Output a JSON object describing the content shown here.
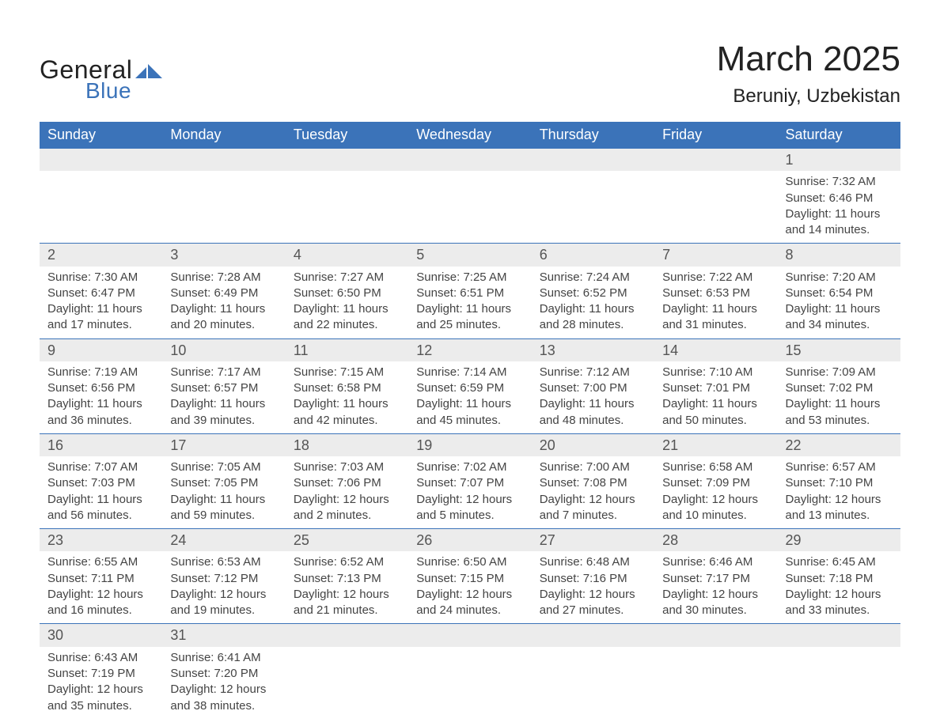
{
  "brand": {
    "word1": "General",
    "word2": "Blue",
    "text_color": "#222222",
    "accent_color": "#3b73b9"
  },
  "header": {
    "title": "March 2025",
    "location": "Beruniy, Uzbekistan"
  },
  "calendar": {
    "type": "table",
    "columns": [
      "Sunday",
      "Monday",
      "Tuesday",
      "Wednesday",
      "Thursday",
      "Friday",
      "Saturday"
    ],
    "header_bg": "#3b73b9",
    "header_text_color": "#ffffff",
    "daynum_bg": "#ececec",
    "row_border_color": "#3b73b9",
    "body_text_color": "#444444",
    "font_family": "Arial",
    "header_fontsize": 18,
    "body_fontsize": 15,
    "daynum_fontsize": 18,
    "weeks": [
      [
        null,
        null,
        null,
        null,
        null,
        null,
        {
          "day": "1",
          "sunrise": "Sunrise: 7:32 AM",
          "sunset": "Sunset: 6:46 PM",
          "daylight1": "Daylight: 11 hours",
          "daylight2": "and 14 minutes."
        }
      ],
      [
        {
          "day": "2",
          "sunrise": "Sunrise: 7:30 AM",
          "sunset": "Sunset: 6:47 PM",
          "daylight1": "Daylight: 11 hours",
          "daylight2": "and 17 minutes."
        },
        {
          "day": "3",
          "sunrise": "Sunrise: 7:28 AM",
          "sunset": "Sunset: 6:49 PM",
          "daylight1": "Daylight: 11 hours",
          "daylight2": "and 20 minutes."
        },
        {
          "day": "4",
          "sunrise": "Sunrise: 7:27 AM",
          "sunset": "Sunset: 6:50 PM",
          "daylight1": "Daylight: 11 hours",
          "daylight2": "and 22 minutes."
        },
        {
          "day": "5",
          "sunrise": "Sunrise: 7:25 AM",
          "sunset": "Sunset: 6:51 PM",
          "daylight1": "Daylight: 11 hours",
          "daylight2": "and 25 minutes."
        },
        {
          "day": "6",
          "sunrise": "Sunrise: 7:24 AM",
          "sunset": "Sunset: 6:52 PM",
          "daylight1": "Daylight: 11 hours",
          "daylight2": "and 28 minutes."
        },
        {
          "day": "7",
          "sunrise": "Sunrise: 7:22 AM",
          "sunset": "Sunset: 6:53 PM",
          "daylight1": "Daylight: 11 hours",
          "daylight2": "and 31 minutes."
        },
        {
          "day": "8",
          "sunrise": "Sunrise: 7:20 AM",
          "sunset": "Sunset: 6:54 PM",
          "daylight1": "Daylight: 11 hours",
          "daylight2": "and 34 minutes."
        }
      ],
      [
        {
          "day": "9",
          "sunrise": "Sunrise: 7:19 AM",
          "sunset": "Sunset: 6:56 PM",
          "daylight1": "Daylight: 11 hours",
          "daylight2": "and 36 minutes."
        },
        {
          "day": "10",
          "sunrise": "Sunrise: 7:17 AM",
          "sunset": "Sunset: 6:57 PM",
          "daylight1": "Daylight: 11 hours",
          "daylight2": "and 39 minutes."
        },
        {
          "day": "11",
          "sunrise": "Sunrise: 7:15 AM",
          "sunset": "Sunset: 6:58 PM",
          "daylight1": "Daylight: 11 hours",
          "daylight2": "and 42 minutes."
        },
        {
          "day": "12",
          "sunrise": "Sunrise: 7:14 AM",
          "sunset": "Sunset: 6:59 PM",
          "daylight1": "Daylight: 11 hours",
          "daylight2": "and 45 minutes."
        },
        {
          "day": "13",
          "sunrise": "Sunrise: 7:12 AM",
          "sunset": "Sunset: 7:00 PM",
          "daylight1": "Daylight: 11 hours",
          "daylight2": "and 48 minutes."
        },
        {
          "day": "14",
          "sunrise": "Sunrise: 7:10 AM",
          "sunset": "Sunset: 7:01 PM",
          "daylight1": "Daylight: 11 hours",
          "daylight2": "and 50 minutes."
        },
        {
          "day": "15",
          "sunrise": "Sunrise: 7:09 AM",
          "sunset": "Sunset: 7:02 PM",
          "daylight1": "Daylight: 11 hours",
          "daylight2": "and 53 minutes."
        }
      ],
      [
        {
          "day": "16",
          "sunrise": "Sunrise: 7:07 AM",
          "sunset": "Sunset: 7:03 PM",
          "daylight1": "Daylight: 11 hours",
          "daylight2": "and 56 minutes."
        },
        {
          "day": "17",
          "sunrise": "Sunrise: 7:05 AM",
          "sunset": "Sunset: 7:05 PM",
          "daylight1": "Daylight: 11 hours",
          "daylight2": "and 59 minutes."
        },
        {
          "day": "18",
          "sunrise": "Sunrise: 7:03 AM",
          "sunset": "Sunset: 7:06 PM",
          "daylight1": "Daylight: 12 hours",
          "daylight2": "and 2 minutes."
        },
        {
          "day": "19",
          "sunrise": "Sunrise: 7:02 AM",
          "sunset": "Sunset: 7:07 PM",
          "daylight1": "Daylight: 12 hours",
          "daylight2": "and 5 minutes."
        },
        {
          "day": "20",
          "sunrise": "Sunrise: 7:00 AM",
          "sunset": "Sunset: 7:08 PM",
          "daylight1": "Daylight: 12 hours",
          "daylight2": "and 7 minutes."
        },
        {
          "day": "21",
          "sunrise": "Sunrise: 6:58 AM",
          "sunset": "Sunset: 7:09 PM",
          "daylight1": "Daylight: 12 hours",
          "daylight2": "and 10 minutes."
        },
        {
          "day": "22",
          "sunrise": "Sunrise: 6:57 AM",
          "sunset": "Sunset: 7:10 PM",
          "daylight1": "Daylight: 12 hours",
          "daylight2": "and 13 minutes."
        }
      ],
      [
        {
          "day": "23",
          "sunrise": "Sunrise: 6:55 AM",
          "sunset": "Sunset: 7:11 PM",
          "daylight1": "Daylight: 12 hours",
          "daylight2": "and 16 minutes."
        },
        {
          "day": "24",
          "sunrise": "Sunrise: 6:53 AM",
          "sunset": "Sunset: 7:12 PM",
          "daylight1": "Daylight: 12 hours",
          "daylight2": "and 19 minutes."
        },
        {
          "day": "25",
          "sunrise": "Sunrise: 6:52 AM",
          "sunset": "Sunset: 7:13 PM",
          "daylight1": "Daylight: 12 hours",
          "daylight2": "and 21 minutes."
        },
        {
          "day": "26",
          "sunrise": "Sunrise: 6:50 AM",
          "sunset": "Sunset: 7:15 PM",
          "daylight1": "Daylight: 12 hours",
          "daylight2": "and 24 minutes."
        },
        {
          "day": "27",
          "sunrise": "Sunrise: 6:48 AM",
          "sunset": "Sunset: 7:16 PM",
          "daylight1": "Daylight: 12 hours",
          "daylight2": "and 27 minutes."
        },
        {
          "day": "28",
          "sunrise": "Sunrise: 6:46 AM",
          "sunset": "Sunset: 7:17 PM",
          "daylight1": "Daylight: 12 hours",
          "daylight2": "and 30 minutes."
        },
        {
          "day": "29",
          "sunrise": "Sunrise: 6:45 AM",
          "sunset": "Sunset: 7:18 PM",
          "daylight1": "Daylight: 12 hours",
          "daylight2": "and 33 minutes."
        }
      ],
      [
        {
          "day": "30",
          "sunrise": "Sunrise: 6:43 AM",
          "sunset": "Sunset: 7:19 PM",
          "daylight1": "Daylight: 12 hours",
          "daylight2": "and 35 minutes."
        },
        {
          "day": "31",
          "sunrise": "Sunrise: 6:41 AM",
          "sunset": "Sunset: 7:20 PM",
          "daylight1": "Daylight: 12 hours",
          "daylight2": "and 38 minutes."
        },
        null,
        null,
        null,
        null,
        null
      ]
    ]
  }
}
